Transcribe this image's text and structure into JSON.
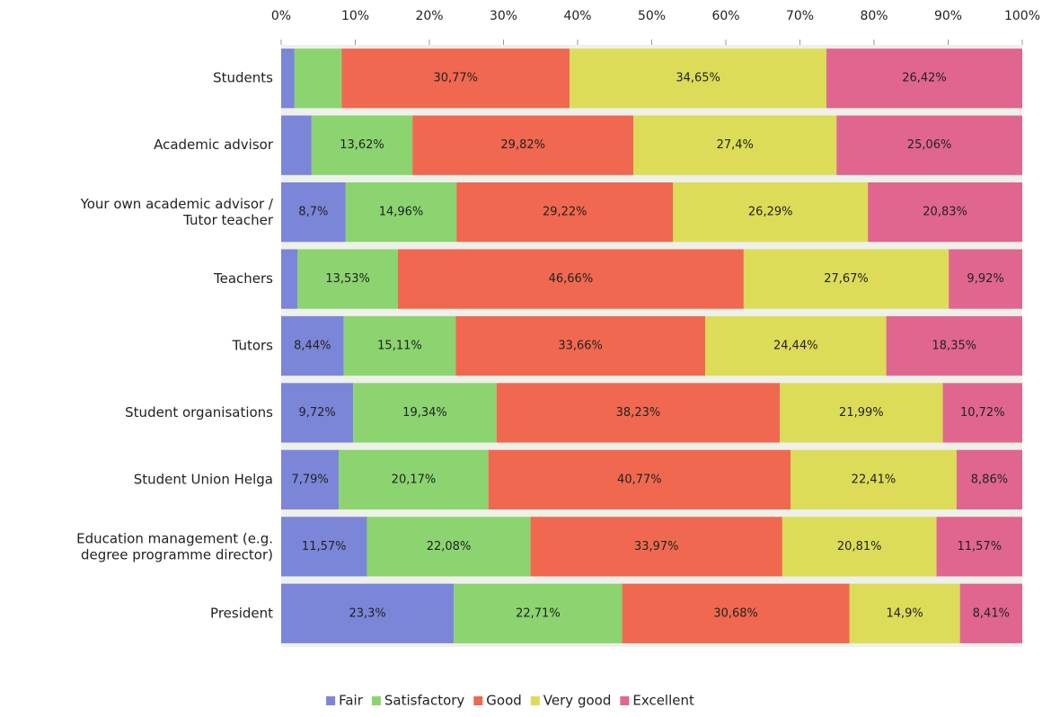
{
  "chart_data": {
    "type": "stacked-bar-horizontal",
    "categories": [
      "Students",
      "Academic advisor",
      "Your own academic advisor /\nTutor teacher",
      "Teachers",
      "Tutors",
      "Student organisations",
      "Student Union Helga",
      "Education management (e.g.\ndegree programme director)",
      "President"
    ],
    "series": [
      {
        "name": "Fair",
        "color": "#7b86d9",
        "values": [
          1.8,
          4.1,
          8.7,
          2.22,
          8.44,
          9.72,
          7.79,
          11.57,
          23.3
        ],
        "value_labels": [
          null,
          null,
          "8,7%",
          null,
          "8,44%",
          "9,72%",
          "7,79%",
          "11,57%",
          "23,3%"
        ]
      },
      {
        "name": "Satisfactory",
        "color": "#8bd46f",
        "values": [
          6.36,
          13.62,
          14.96,
          13.53,
          15.11,
          19.34,
          20.17,
          22.08,
          22.71
        ],
        "value_labels": [
          null,
          "13,62%",
          "14,96%",
          "13,53%",
          "15,11%",
          "19,34%",
          "20,17%",
          "22,08%",
          "22,71%"
        ]
      },
      {
        "name": "Good",
        "color": "#f0684f",
        "values": [
          30.77,
          29.82,
          29.22,
          46.66,
          33.66,
          38.23,
          40.77,
          33.97,
          30.68
        ],
        "value_labels": [
          "30,77%",
          "29,82%",
          "29,22%",
          "46,66%",
          "33,66%",
          "38,23%",
          "40,77%",
          "33,97%",
          "30,68%"
        ]
      },
      {
        "name": "Very good",
        "color": "#dcdc58",
        "values": [
          34.65,
          27.4,
          26.29,
          27.67,
          24.44,
          21.99,
          22.41,
          20.81,
          14.9
        ],
        "value_labels": [
          "34,65%",
          "27,4%",
          "26,29%",
          "27,67%",
          "24,44%",
          "21,99%",
          "22,41%",
          "20,81%",
          "14,9%"
        ]
      },
      {
        "name": "Excellent",
        "color": "#e0668f",
        "values": [
          26.42,
          25.06,
          20.83,
          9.92,
          18.35,
          10.72,
          8.86,
          11.57,
          8.41
        ],
        "value_labels": [
          "26,42%",
          "25,06%",
          "20,83%",
          "9,92%",
          "18,35%",
          "10,72%",
          "8,86%",
          "11,57%",
          "8,41%"
        ]
      }
    ],
    "xlim": [
      0,
      100
    ],
    "xticks": [
      {
        "value": 0,
        "label": "0%"
      },
      {
        "value": 10,
        "label": "10%"
      },
      {
        "value": 20,
        "label": "20%"
      },
      {
        "value": 30,
        "label": "30%"
      },
      {
        "value": 40,
        "label": "40%"
      },
      {
        "value": 50,
        "label": "50%"
      },
      {
        "value": 60,
        "label": "60%"
      },
      {
        "value": 70,
        "label": "70%"
      },
      {
        "value": 80,
        "label": "80%"
      },
      {
        "value": 90,
        "label": "90%"
      },
      {
        "value": 100,
        "label": "100%"
      }
    ],
    "legend": "bottom"
  }
}
